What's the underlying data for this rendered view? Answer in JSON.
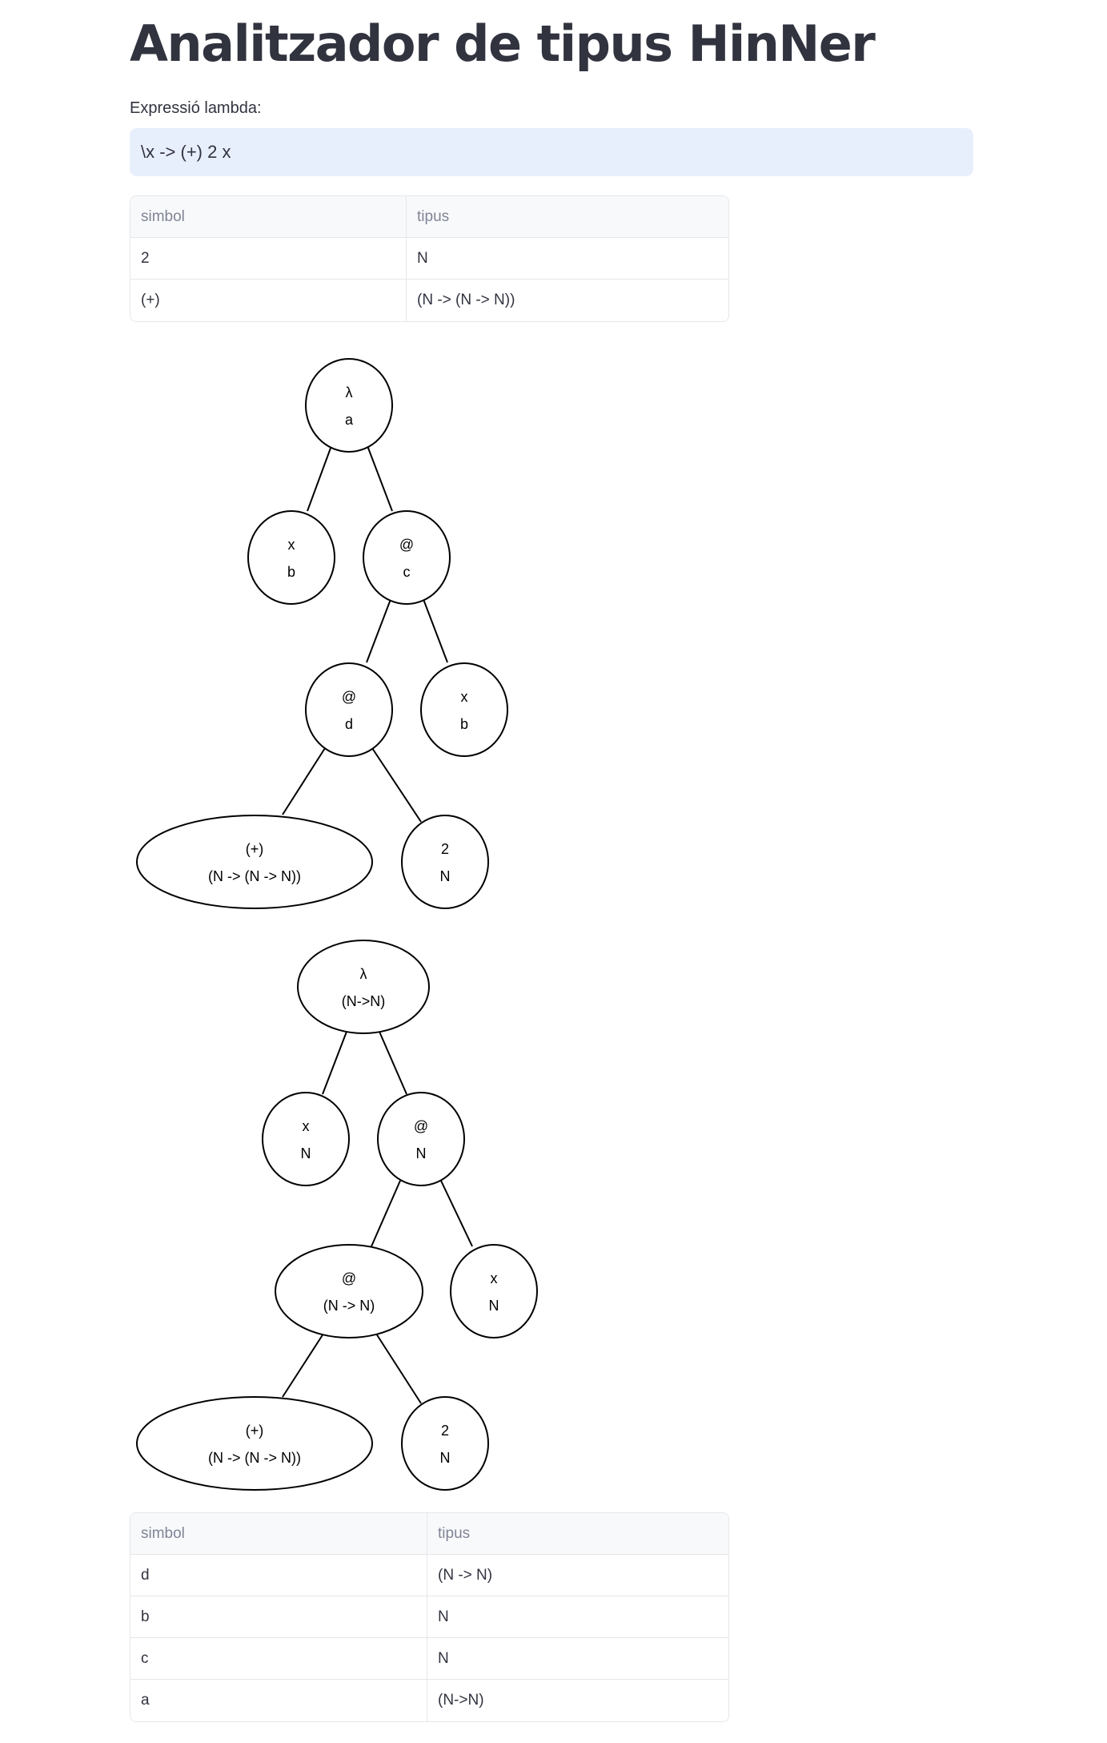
{
  "page": {
    "title": "Analitzador de tipus HinNer"
  },
  "expression": {
    "label": "Expressió lambda:",
    "value": "\\x -> (+) 2 x"
  },
  "symbols_table": {
    "headers": [
      "simbol",
      "tipus"
    ],
    "rows": [
      [
        "2",
        "N"
      ],
      [
        "(+)",
        "(N -> (N -> N))"
      ]
    ]
  },
  "tree_initial": {
    "root": {
      "symbol": "λ",
      "type": "a"
    },
    "param": {
      "symbol": "x",
      "type": "b"
    },
    "app1": {
      "symbol": "@",
      "type": "c"
    },
    "app2": {
      "symbol": "@",
      "type": "d"
    },
    "arg_x": {
      "symbol": "x",
      "type": "b"
    },
    "plus": {
      "symbol": "(+)",
      "type": "(N -> (N -> N))"
    },
    "two": {
      "symbol": "2",
      "type": "N"
    }
  },
  "tree_inferred": {
    "root": {
      "symbol": "λ",
      "type": "(N->N)"
    },
    "param": {
      "symbol": "x",
      "type": "N"
    },
    "app1": {
      "symbol": "@",
      "type": "N"
    },
    "app2": {
      "symbol": "@",
      "type": "(N -> N)"
    },
    "arg_x": {
      "symbol": "x",
      "type": "N"
    },
    "plus": {
      "symbol": "(+)",
      "type": "(N -> (N -> N))"
    },
    "two": {
      "symbol": "2",
      "type": "N"
    }
  },
  "substitutions_table": {
    "headers": [
      "simbol",
      "tipus"
    ],
    "rows": [
      [
        "d",
        "(N -> N)"
      ],
      [
        "b",
        "N"
      ],
      [
        "c",
        "N"
      ],
      [
        "a",
        "(N->N)"
      ]
    ]
  }
}
